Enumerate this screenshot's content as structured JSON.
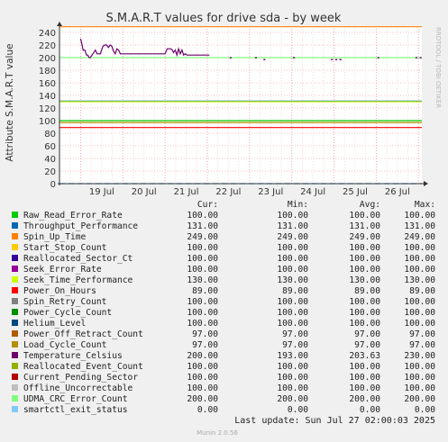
{
  "chart_data": {
    "type": "line",
    "title": "S.M.A.R.T values for drive sda - by week",
    "ylabel": "Attribute S.M.A.R.T value",
    "watermark": "RRDTOOL / TOBI OETIKER",
    "ylim": [
      0,
      250
    ],
    "yticks": [
      0,
      20,
      40,
      60,
      80,
      100,
      120,
      140,
      160,
      180,
      200,
      220,
      240
    ],
    "x_range_days": [
      "18 Jul 12:00",
      "27 Jul 02:00"
    ],
    "xticks": [
      "19 Jul",
      "20 Jul",
      "21 Jul",
      "22 Jul",
      "23 Jul",
      "24 Jul",
      "25 Jul",
      "26 Jul"
    ],
    "grid": true,
    "legend_headers": [
      "Cur:",
      "Min:",
      "Avg:",
      "Max:"
    ],
    "series": [
      {
        "name": "Raw_Read_Error_Rate",
        "color": "#00cc00",
        "values": [
          "100.00",
          "100.00",
          "100.00",
          "100.00"
        ]
      },
      {
        "name": "Throughput_Performance",
        "color": "#0066b3",
        "values": [
          "131.00",
          "131.00",
          "131.00",
          "131.00"
        ]
      },
      {
        "name": "Spin_Up_Time",
        "color": "#ff8000",
        "values": [
          "249.00",
          "249.00",
          "249.00",
          "249.00"
        ]
      },
      {
        "name": "Start_Stop_Count",
        "color": "#ffcc00",
        "values": [
          "100.00",
          "100.00",
          "100.00",
          "100.00"
        ]
      },
      {
        "name": "Reallocated_Sector_Ct",
        "color": "#330099",
        "values": [
          "100.00",
          "100.00",
          "100.00",
          "100.00"
        ]
      },
      {
        "name": "Seek_Error_Rate",
        "color": "#990099",
        "values": [
          "100.00",
          "100.00",
          "100.00",
          "100.00"
        ]
      },
      {
        "name": "Seek_Time_Performance",
        "color": "#ccff00",
        "values": [
          "130.00",
          "130.00",
          "130.00",
          "130.00"
        ]
      },
      {
        "name": "Power_On_Hours",
        "color": "#ff0000",
        "values": [
          "89.00",
          "89.00",
          "89.00",
          "89.00"
        ]
      },
      {
        "name": "Spin_Retry_Count",
        "color": "#808080",
        "values": [
          "100.00",
          "100.00",
          "100.00",
          "100.00"
        ]
      },
      {
        "name": "Power_Cycle_Count",
        "color": "#008f00",
        "values": [
          "100.00",
          "100.00",
          "100.00",
          "100.00"
        ]
      },
      {
        "name": "Helium_Level",
        "color": "#00487d",
        "values": [
          "100.00",
          "100.00",
          "100.00",
          "100.00"
        ]
      },
      {
        "name": "Power_Off_Retract_Count",
        "color": "#b35a00",
        "values": [
          "97.00",
          "97.00",
          "97.00",
          "97.00"
        ]
      },
      {
        "name": "Load_Cycle_Count",
        "color": "#b38f00",
        "values": [
          "97.00",
          "97.00",
          "97.00",
          "97.00"
        ]
      },
      {
        "name": "Temperature_Celsius",
        "color": "#6b006b",
        "values": [
          "200.00",
          "193.00",
          "203.63",
          "230.00"
        ]
      },
      {
        "name": "Reallocated_Event_Count",
        "color": "#8fb300",
        "values": [
          "100.00",
          "100.00",
          "100.00",
          "100.00"
        ]
      },
      {
        "name": "Current_Pending_Sector",
        "color": "#b30000",
        "values": [
          "100.00",
          "100.00",
          "100.00",
          "100.00"
        ]
      },
      {
        "name": "Offline_Uncorrectable",
        "color": "#bebebe",
        "values": [
          "100.00",
          "100.00",
          "100.00",
          "100.00"
        ]
      },
      {
        "name": "UDMA_CRC_Error_Count",
        "color": "#80ff80",
        "values": [
          "200.00",
          "200.00",
          "200.00",
          "200.00"
        ]
      },
      {
        "name": "smartctl_exit_status",
        "color": "#80c9ff",
        "values": [
          "0.00",
          "0.00",
          "0.00",
          "0.00"
        ]
      }
    ],
    "lines_drawn": [
      {
        "name": "Spin_Up_Time",
        "value": 249
      },
      {
        "name": "UDMA_CRC_Error_Count",
        "value": 200
      },
      {
        "name": "Throughput_Performance",
        "value": 131
      },
      {
        "name": "Seek_Time_Performance",
        "value": 130
      },
      {
        "name": "Raw_Read_Error_Rate",
        "value": 100
      },
      {
        "name": "Load_Cycle_Count",
        "value": 97
      },
      {
        "name": "Power_On_Hours",
        "value": 89
      },
      {
        "name": "smartctl_exit_status",
        "value": 0
      }
    ],
    "temperature_trace": {
      "x_days": [
        0.0,
        0.03,
        0.06,
        0.1,
        0.14,
        0.17,
        0.2,
        0.23,
        0.27,
        0.31,
        0.35,
        0.39,
        0.43,
        0.47,
        0.5,
        0.53,
        0.57,
        0.62,
        0.66,
        0.7,
        0.74,
        0.78,
        0.82,
        0.86,
        0.9,
        0.94,
        0.98,
        1.02,
        1.06,
        1.1,
        1.14,
        1.2,
        1.3,
        1.4,
        1.5,
        1.6,
        1.7,
        1.8,
        1.9,
        2.0,
        2.05,
        2.1,
        2.14,
        2.17,
        2.2,
        2.24,
        2.28,
        2.32,
        2.36,
        2.4,
        2.44,
        2.48,
        2.52,
        2.56,
        2.6,
        2.65,
        2.7,
        2.8,
        2.9,
        3.0,
        3.05
      ],
      "values": [
        230,
        222,
        212,
        212,
        204,
        204,
        200,
        200,
        204,
        208,
        212,
        206,
        206,
        206,
        213,
        218,
        220,
        220,
        216,
        220,
        218,
        210,
        206,
        214,
        212,
        206,
        206,
        206,
        206,
        206,
        206,
        206,
        206,
        206,
        206,
        206,
        206,
        206,
        206,
        206,
        214,
        214,
        214,
        212,
        208,
        212,
        204,
        214,
        206,
        212,
        204,
        206,
        204,
        204,
        204,
        204,
        204,
        204,
        204,
        204,
        204
      ],
      "dots": [
        {
          "day": 3.55,
          "value": 200
        },
        {
          "day": 4.15,
          "value": 200
        },
        {
          "day": 4.35,
          "value": 197
        },
        {
          "day": 5.05,
          "value": 200
        },
        {
          "day": 5.95,
          "value": 197
        },
        {
          "day": 6.05,
          "value": 197
        },
        {
          "day": 6.15,
          "value": 197
        },
        {
          "day": 7.05,
          "value": 200
        },
        {
          "day": 7.95,
          "value": 200
        },
        {
          "day": 8.05,
          "value": 200
        },
        {
          "day": 8.75,
          "value": 197
        },
        {
          "day": 8.95,
          "value": 197
        },
        {
          "day": 9.05,
          "value": 197
        },
        {
          "day": 9.75,
          "value": 197
        },
        {
          "day": 10.05,
          "value": 200
        },
        {
          "day": 10.15,
          "value": 197
        },
        {
          "day": 10.25,
          "value": 197
        },
        {
          "day": 10.35,
          "value": 197
        },
        {
          "day": 10.45,
          "value": 197
        },
        {
          "day": 10.55,
          "value": 197
        },
        {
          "day": 10.65,
          "value": 197
        }
      ]
    }
  },
  "footer": {
    "last_update": "Last update: Sun Jul 27 02:00:03 2025",
    "version": "Munin 2.0.56"
  }
}
